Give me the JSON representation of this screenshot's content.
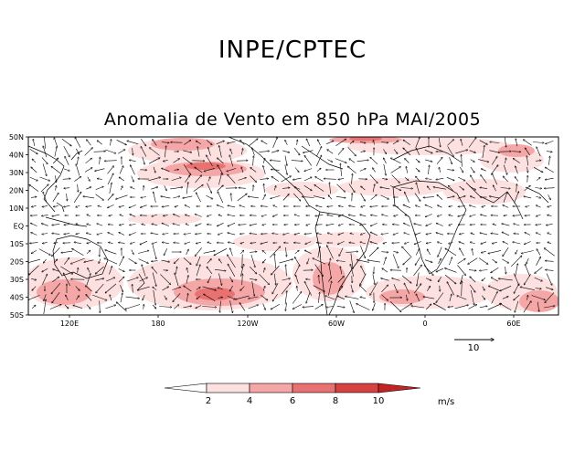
{
  "header": {
    "title": "INPE/CPTEC"
  },
  "map": {
    "title": "Anomalia de Vento em 850 hPa MAI/2005",
    "lat_labels": [
      "50N",
      "40N",
      "30N",
      "20N",
      "10N",
      "EQ",
      "10S",
      "20S",
      "30S",
      "40S",
      "50S"
    ],
    "lon_labels": [
      "120E",
      "180",
      "120W",
      "60W",
      "0",
      "60E"
    ],
    "reference_vector": {
      "label": "10",
      "magnitude": 10
    },
    "colors": {
      "land": "#ffffff",
      "coast": "#000000"
    }
  },
  "colorbar": {
    "unit": "m/s",
    "ticks": [
      "2",
      "4",
      "6",
      "8",
      "10"
    ],
    "colors": [
      "#ffffff",
      "#fde0e0",
      "#f5a6a6",
      "#e87272",
      "#d64141",
      "#c12424"
    ]
  }
}
